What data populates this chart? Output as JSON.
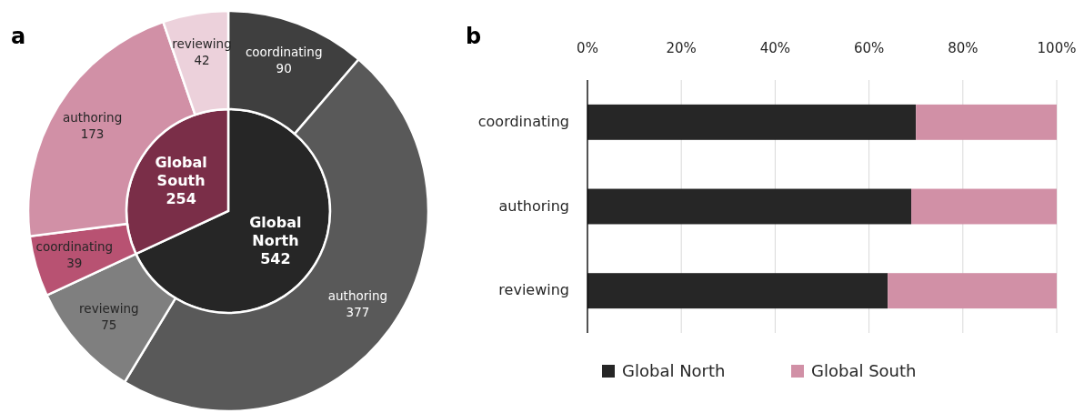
{
  "chart_data": [
    {
      "type": "pie",
      "categories": [
        "Global North",
        "Global South"
      ],
      "values": [
        542,
        254
      ],
      "colors": [
        "#262626",
        "#7a2e48"
      ],
      "data_labels": true,
      "annotations": [
        "a"
      ]
    },
    {
      "type": "donut",
      "categories": [
        "coordinating",
        "authoring",
        "reviewing",
        "coordinating",
        "authoring",
        "reviewing"
      ],
      "values": [
        90,
        377,
        75,
        39,
        173,
        42
      ],
      "colors": [
        "#3f3f3f",
        "#595959",
        "#7f7f7f",
        "#b85272",
        "#d190a6",
        "#ecd1db"
      ],
      "data_labels": true
    },
    {
      "type": "bar",
      "orientation": "horizontal",
      "stacked": true,
      "categories": [
        "coordinating",
        "authoring",
        "reviewing"
      ],
      "series": [
        {
          "name": "Global North",
          "color": "#262626",
          "values": [
            70,
            69,
            64
          ]
        },
        {
          "name": "Global South",
          "color": "#d190a6",
          "values": [
            30,
            31,
            36
          ]
        }
      ],
      "xlim": [
        0,
        100
      ],
      "xticks": [
        {
          "value": 0,
          "label": "0%"
        },
        {
          "value": 20,
          "label": "20%"
        },
        {
          "value": 40,
          "label": "40%"
        },
        {
          "value": 60,
          "label": "60%"
        },
        {
          "value": 80,
          "label": "80%"
        },
        {
          "value": 100,
          "label": "100%"
        }
      ],
      "grid": "x",
      "legend": "bottom",
      "annotations": [
        "b"
      ]
    }
  ]
}
